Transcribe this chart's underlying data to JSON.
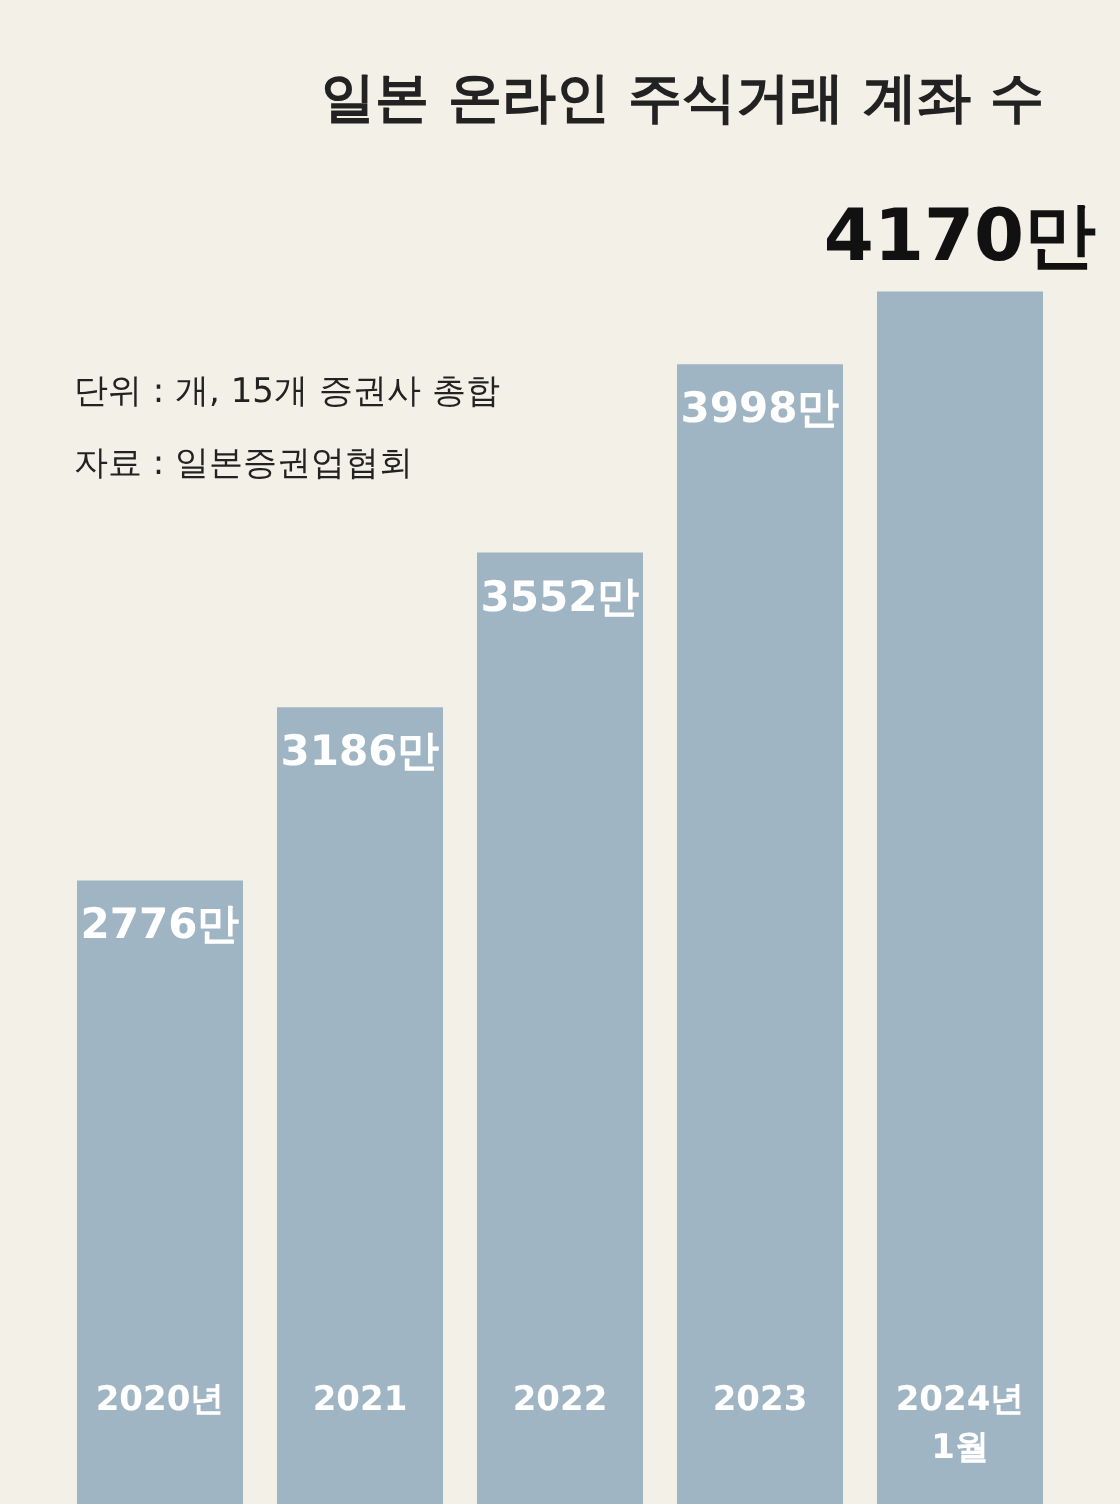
{
  "chart_data": {
    "type": "bar",
    "title": "일본 온라인 주식거래 계좌 수",
    "annotations": [
      "단위 : 개, 15개 증권사 총합",
      "자료 : 일본증권업협회"
    ],
    "categories": [
      "2020년",
      "2021",
      "2022",
      "2023",
      "2024년 1월"
    ],
    "values": [
      2776,
      3186,
      3552,
      3998,
      4170
    ],
    "value_labels": [
      "2776만",
      "3186만",
      "3552만",
      "3998만",
      "4170만"
    ],
    "color": "#9fb5c4",
    "ylim": [
      1300,
      4860
    ],
    "tick_labels": "x",
    "grid": false
  }
}
